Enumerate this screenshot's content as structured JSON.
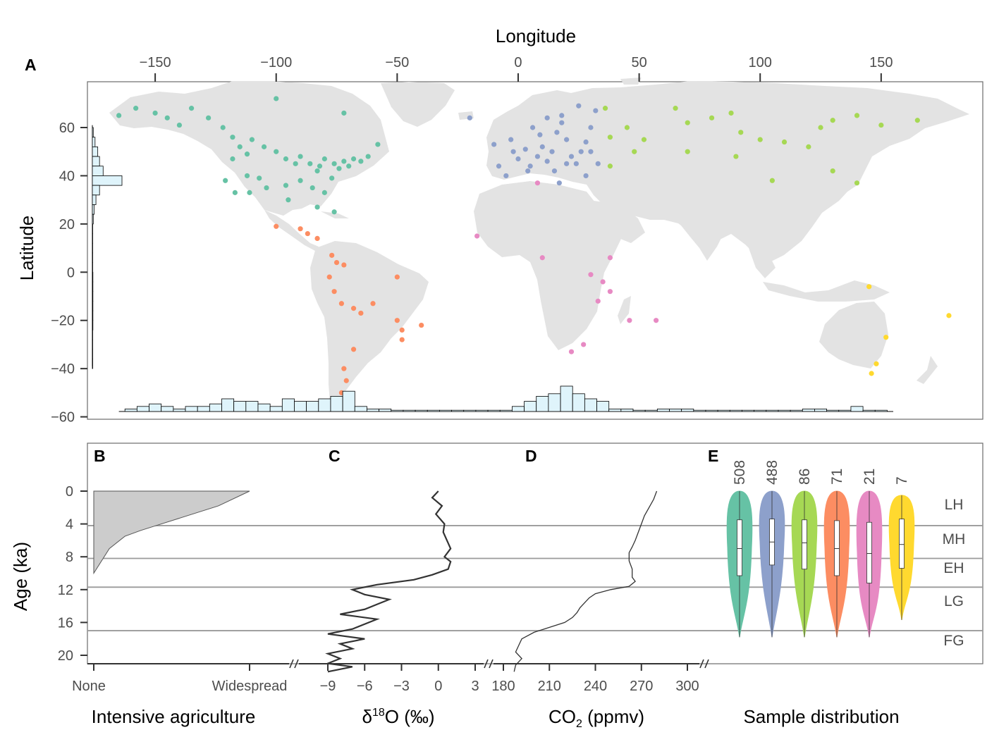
{
  "panels": {
    "A": "A",
    "B": "B",
    "C": "C",
    "D": "D",
    "E": "E"
  },
  "colors": {
    "land": "#e3e3e3",
    "hist_fill": "#dff4fb",
    "agri_fill": "#cccccc",
    "series": [
      "#66c2a5",
      "#8da0cb",
      "#a6d854",
      "#fc8d62",
      "#e78ac3",
      "#ffd92f"
    ]
  },
  "map": {
    "xlabel": "Longitude",
    "ylabel": "Latitude",
    "xticks": [
      "−150",
      "−100",
      "−50",
      "0",
      "50",
      "100",
      "150"
    ],
    "yticks": [
      "60",
      "40",
      "20",
      "0",
      "−20",
      "−40",
      "−60"
    ],
    "lon_range": [
      -178,
      192
    ],
    "lat_range": [
      -61,
      79
    ]
  },
  "lower": {
    "ylabel": "Age (ka)",
    "yticks": [
      "0",
      "4",
      "8",
      "12",
      "16",
      "20"
    ],
    "period_labels": [
      "LH",
      "MH",
      "EH",
      "LG",
      "FG"
    ],
    "period_boundaries_ka": [
      4.2,
      8.2,
      11.7,
      17.0
    ]
  },
  "panel_b": {
    "title": "Intensive agriculture",
    "xtick_left": "None",
    "xtick_right": "Widespread"
  },
  "panel_c": {
    "title_prefix": "δ",
    "title_sup": "18",
    "title_suffix": "O (‰)",
    "xticks": [
      "−9",
      "−6",
      "−3",
      "0",
      "3"
    ],
    "range": [
      -11,
      3
    ]
  },
  "panel_d": {
    "title_prefix": "CO",
    "title_sub": "2",
    "title_suffix": " (ppmv)",
    "xticks": [
      "180",
      "210",
      "240",
      "270",
      "300"
    ],
    "range": [
      176,
      306
    ]
  },
  "panel_e": {
    "title": "Sample distribution",
    "counts": [
      "508",
      "488",
      "86",
      "71",
      "21",
      "7"
    ]
  },
  "chart_data": [
    {
      "type": "scatter",
      "xlabel": "Longitude",
      "ylabel": "Latitude",
      "xlim": [
        -178,
        192
      ],
      "ylim": [
        -61,
        79
      ],
      "series": [
        {
          "color": "#66c2a5",
          "points": [
            [
              -165,
              65
            ],
            [
              -158,
              68
            ],
            [
              -150,
              66
            ],
            [
              -145,
              64
            ],
            [
              -140,
              61
            ],
            [
              -135,
              68
            ],
            [
              -128,
              64
            ],
            [
              -122,
              60
            ],
            [
              -118,
              56
            ],
            [
              -115,
              52
            ],
            [
              -112,
              49
            ],
            [
              -110,
              55
            ],
            [
              -105,
              52
            ],
            [
              -100,
              50
            ],
            [
              -96,
              47
            ],
            [
              -92,
              45
            ],
            [
              -90,
              48
            ],
            [
              -86,
              45
            ],
            [
              -82,
              44
            ],
            [
              -80,
              47
            ],
            [
              -76,
              45
            ],
            [
              -74,
              43
            ],
            [
              -72,
              46
            ],
            [
              -70,
              44
            ],
            [
              -68,
              47
            ],
            [
              -65,
              46
            ],
            [
              -62,
              48
            ],
            [
              -118,
              47
            ],
            [
              -112,
              40
            ],
            [
              -107,
              39
            ],
            [
              -104,
              35
            ],
            [
              -96,
              36
            ],
            [
              -90,
              38
            ],
            [
              -85,
              35
            ],
            [
              -80,
              33
            ],
            [
              -100,
              72
            ],
            [
              -72,
              66
            ],
            [
              -58,
              53
            ],
            [
              -83,
              42
            ],
            [
              -77,
              39
            ],
            [
              -121,
              38
            ],
            [
              -117,
              33
            ],
            [
              -111,
              33
            ],
            [
              -95,
              30
            ],
            [
              -83,
              27
            ],
            [
              -76,
              25
            ]
          ]
        },
        {
          "color": "#8da0cb",
          "points": [
            [
              -20,
              64
            ],
            [
              -10,
              53
            ],
            [
              -8,
              44
            ],
            [
              -5,
              40
            ],
            [
              -2,
              50
            ],
            [
              0,
              47
            ],
            [
              3,
              51
            ],
            [
              5,
              44
            ],
            [
              8,
              48
            ],
            [
              10,
              52
            ],
            [
              12,
              46
            ],
            [
              14,
              50
            ],
            [
              16,
              58
            ],
            [
              18,
              62
            ],
            [
              20,
              55
            ],
            [
              22,
              48
            ],
            [
              24,
              45
            ],
            [
              26,
              50
            ],
            [
              28,
              54
            ],
            [
              30,
              60
            ],
            [
              32,
              67
            ],
            [
              25,
              69
            ],
            [
              18,
              65
            ],
            [
              9,
              57
            ],
            [
              4,
              42
            ],
            [
              15,
              42
            ],
            [
              28,
              40
            ],
            [
              33,
              45
            ],
            [
              12,
              64
            ],
            [
              20,
              45
            ],
            [
              6,
              60
            ],
            [
              -3,
              55
            ],
            [
              30,
              50
            ],
            [
              17,
              37
            ]
          ]
        },
        {
          "color": "#a6d854",
          "points": [
            [
              36,
              68
            ],
            [
              38,
              56
            ],
            [
              45,
              60
            ],
            [
              52,
              55
            ],
            [
              65,
              68
            ],
            [
              70,
              62
            ],
            [
              80,
              64
            ],
            [
              88,
              66
            ],
            [
              92,
              58
            ],
            [
              100,
              55
            ],
            [
              110,
              54
            ],
            [
              120,
              52
            ],
            [
              125,
              60
            ],
            [
              130,
              63
            ],
            [
              140,
              65
            ],
            [
              150,
              61
            ],
            [
              165,
              63
            ],
            [
              48,
              50
            ],
            [
              70,
              50
            ],
            [
              90,
              48
            ],
            [
              105,
              38
            ],
            [
              140,
              37
            ],
            [
              130,
              42
            ],
            [
              38,
              44
            ]
          ]
        },
        {
          "color": "#fc8d62",
          "points": [
            [
              -100,
              19
            ],
            [
              -90,
              18
            ],
            [
              -87,
              16
            ],
            [
              -77,
              7
            ],
            [
              -75,
              4
            ],
            [
              -72,
              3
            ],
            [
              -78,
              -2
            ],
            [
              -76,
              -8
            ],
            [
              -73,
              -13
            ],
            [
              -68,
              -15
            ],
            [
              -65,
              -17
            ],
            [
              -60,
              -13
            ],
            [
              -50,
              -20
            ],
            [
              -48,
              -24
            ],
            [
              -40,
              -22
            ],
            [
              -68,
              -32
            ],
            [
              -72,
              -40
            ],
            [
              -71,
              -45
            ],
            [
              -73,
              -50
            ],
            [
              -72,
              -55
            ],
            [
              -48,
              -28
            ],
            [
              -50,
              -2
            ],
            [
              -83,
              14
            ]
          ]
        },
        {
          "color": "#e78ac3",
          "points": [
            [
              8,
              37
            ],
            [
              -17,
              15
            ],
            [
              10,
              6
            ],
            [
              30,
              -1
            ],
            [
              35,
              -4
            ],
            [
              38,
              -8
            ],
            [
              38,
              6
            ],
            [
              27,
              -30
            ],
            [
              22,
              -33
            ],
            [
              46,
              -20
            ],
            [
              57,
              -20
            ],
            [
              33,
              -12
            ]
          ]
        },
        {
          "color": "#ffd92f",
          "points": [
            [
              145,
              -6
            ],
            [
              152,
              -27
            ],
            [
              148,
              -38
            ],
            [
              146,
              -42
            ],
            [
              178,
              -18
            ]
          ]
        }
      ]
    },
    {
      "type": "bar",
      "orientation": "horizontal",
      "description_axis": "Latitude",
      "bins_lat": [
        58,
        54,
        50,
        46,
        42,
        38,
        34,
        30,
        26,
        22,
        18,
        14,
        10,
        6,
        2,
        -2,
        -6,
        -10,
        -14,
        -18,
        -22,
        -26,
        -30,
        -34,
        -38
      ],
      "values": [
        1,
        3,
        6,
        8,
        12,
        33,
        8,
        4,
        2,
        1,
        0.4,
        0.4,
        0.4,
        0.4,
        0.4,
        0.6,
        0.6,
        0.6,
        0.6,
        0.6,
        0.6,
        0.4,
        0.4,
        0.4,
        0.4
      ]
    },
    {
      "type": "bar",
      "description_axis": "Longitude",
      "bins_lon": [
        -160,
        -155,
        -150,
        -145,
        -140,
        -135,
        -130,
        -125,
        -120,
        -115,
        -110,
        -105,
        -100,
        -95,
        -90,
        -85,
        -80,
        -75,
        -70,
        -65,
        -60,
        -55,
        -50,
        -45,
        -40,
        -35,
        -30,
        -25,
        -20,
        -15,
        -10,
        -5,
        0,
        5,
        10,
        15,
        20,
        25,
        30,
        35,
        40,
        45,
        50,
        55,
        60,
        65,
        70,
        75,
        80,
        85,
        90,
        95,
        100,
        105,
        110,
        115,
        120,
        125,
        130,
        135,
        140,
        145,
        150
      ],
      "values": [
        1,
        2,
        3,
        2,
        1,
        2,
        2,
        3,
        5,
        4,
        4,
        3,
        2,
        5,
        4,
        4,
        5,
        6,
        8,
        2,
        1,
        1,
        0.5,
        0.5,
        0.5,
        0.5,
        0.5,
        0.5,
        0.5,
        0.5,
        0.5,
        0.5,
        2,
        4,
        6,
        7,
        10,
        7,
        5,
        4,
        1,
        1,
        0.5,
        0.5,
        1,
        1,
        1,
        0.5,
        0.5,
        0.5,
        0.5,
        0.5,
        0.5,
        0.5,
        0.5,
        0.5,
        1,
        1,
        0.5,
        0.5,
        2,
        0.5,
        0.5
      ]
    },
    {
      "type": "area",
      "title": "Intensive agriculture",
      "ylabel": "Age (ka)",
      "x": [
        0,
        0.1,
        0.2,
        0.3,
        0.4,
        0.6,
        0.8,
        1.0
      ],
      "age": [
        10,
        7,
        5.5,
        4.8,
        4.2,
        3.0,
        1.8,
        0
      ]
    },
    {
      "type": "line",
      "xlabel": "δ18O (‰)",
      "ylabel": "Age (ka)",
      "x": [
        0,
        -0.5,
        0.3,
        -0.2,
        0.5,
        0.4,
        0.7,
        1.0,
        0.5,
        1.0,
        0.8,
        -0.5,
        -2,
        -5,
        -7,
        -6,
        -4,
        -5,
        -6,
        -8,
        -5,
        -6,
        -7,
        -9,
        -6,
        -8,
        -7,
        -9,
        -8,
        -9,
        -7,
        -8,
        -9
      ],
      "y": [
        0,
        0.8,
        1.8,
        2.8,
        4,
        5,
        6,
        7,
        8,
        8.6,
        9.5,
        10.2,
        10.8,
        11.4,
        12,
        12.6,
        13.2,
        13.8,
        14.4,
        15,
        15.6,
        16.2,
        16.8,
        17.4,
        18,
        18.6,
        19.2,
        19.8,
        20.4,
        21,
        21.4,
        21.7,
        22
      ]
    },
    {
      "type": "line",
      "xlabel": "CO2 (ppmv)",
      "ylabel": "Age (ka)",
      "x": [
        280,
        278,
        275,
        272,
        270,
        268,
        266,
        264,
        262,
        262,
        264,
        264,
        266,
        262,
        250,
        240,
        236,
        233,
        230,
        228,
        225,
        220,
        210,
        200,
        192,
        190,
        188,
        192,
        188,
        187
      ],
      "y": [
        0,
        1,
        2,
        3,
        4,
        5,
        6,
        6.8,
        7.5,
        8.5,
        9.5,
        10.5,
        11,
        11.6,
        12,
        12.5,
        13,
        13.6,
        14.2,
        14.8,
        15.4,
        16,
        16.6,
        17.2,
        18,
        18.8,
        19.6,
        20.4,
        21.2,
        22
      ]
    },
    {
      "type": "violin",
      "title": "Sample distribution",
      "ylabel": "Age (ka)",
      "groups": [
        {
          "color": "#66c2a5",
          "count": 508,
          "q1": 3.5,
          "median": 7.0,
          "q3": 10.3,
          "min": 0,
          "max": 17.8
        },
        {
          "color": "#8da0cb",
          "count": 488,
          "q1": 3.4,
          "median": 6.2,
          "q3": 9.0,
          "min": 0,
          "max": 17.8
        },
        {
          "color": "#a6d854",
          "count": 86,
          "q1": 3.5,
          "median": 6.3,
          "q3": 9.5,
          "min": 0,
          "max": 17.8
        },
        {
          "color": "#fc8d62",
          "count": 71,
          "q1": 3.6,
          "median": 7.0,
          "q3": 10.3,
          "min": 0,
          "max": 17.8
        },
        {
          "color": "#e78ac3",
          "count": 21,
          "q1": 3.8,
          "median": 7.6,
          "q3": 11.2,
          "min": 0,
          "max": 17.8
        },
        {
          "color": "#ffd92f",
          "count": 7,
          "q1": 3.4,
          "median": 6.5,
          "q3": 9.4,
          "min": 0.5,
          "max": 15.7
        }
      ]
    }
  ]
}
